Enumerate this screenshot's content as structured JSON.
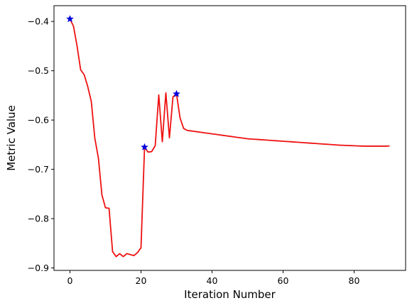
{
  "chart_data": {
    "type": "line",
    "xlabel": "Iteration Number",
    "ylabel": "Metric Value",
    "xlim": [
      -4.5,
      94.5
    ],
    "ylim": [
      -0.905,
      -0.368
    ],
    "x_ticks": [
      0,
      20,
      40,
      60,
      80
    ],
    "x_tick_labels": [
      "0",
      "20",
      "40",
      "60",
      "80"
    ],
    "y_ticks": [
      -0.9,
      -0.8,
      -0.7,
      -0.6,
      -0.5,
      -0.4
    ],
    "y_tick_labels": [
      "−0.9",
      "−0.8",
      "−0.7",
      "−0.6",
      "−0.5",
      "−0.4"
    ],
    "grid": false,
    "line_color": "#ee1111",
    "marker_color": "#0000dd",
    "series": [
      {
        "x": [
          0,
          1,
          2,
          3,
          4,
          5,
          6,
          7,
          8,
          9,
          10,
          11,
          12,
          13,
          14,
          15,
          16,
          17,
          18,
          19,
          20,
          21,
          22,
          23,
          24,
          25,
          26,
          27,
          28,
          29,
          30,
          31,
          32,
          33,
          34,
          35,
          36,
          37,
          38,
          39,
          40,
          41,
          42,
          43,
          44,
          45,
          46,
          47,
          48,
          49,
          50,
          51,
          52,
          53,
          54,
          55,
          56,
          57,
          58,
          59,
          60,
          61,
          62,
          63,
          64,
          65,
          66,
          67,
          68,
          69,
          70,
          71,
          72,
          73,
          74,
          75,
          76,
          77,
          78,
          79,
          80,
          81,
          82,
          83,
          84,
          85,
          86,
          87,
          88,
          89,
          90
        ],
        "values": [
          -0.395,
          -0.41,
          -0.45,
          -0.498,
          -0.508,
          -0.532,
          -0.562,
          -0.637,
          -0.677,
          -0.752,
          -0.778,
          -0.779,
          -0.867,
          -0.877,
          -0.871,
          -0.877,
          -0.871,
          -0.873,
          -0.875,
          -0.869,
          -0.859,
          -0.655,
          -0.665,
          -0.664,
          -0.652,
          -0.549,
          -0.644,
          -0.545,
          -0.636,
          -0.553,
          -0.547,
          -0.596,
          -0.617,
          -0.621,
          -0.622,
          -0.623,
          -0.624,
          -0.625,
          -0.626,
          -0.627,
          -0.628,
          -0.629,
          -0.63,
          -0.631,
          -0.632,
          -0.633,
          -0.634,
          -0.635,
          -0.636,
          -0.637,
          -0.638,
          -0.6385,
          -0.639,
          -0.6395,
          -0.64,
          -0.6405,
          -0.641,
          -0.6415,
          -0.642,
          -0.6425,
          -0.643,
          -0.6435,
          -0.644,
          -0.6445,
          -0.645,
          -0.6455,
          -0.646,
          -0.6465,
          -0.647,
          -0.6475,
          -0.648,
          -0.6485,
          -0.649,
          -0.6495,
          -0.65,
          -0.6505,
          -0.651,
          -0.6513,
          -0.6516,
          -0.6519,
          -0.6522,
          -0.6525,
          -0.6528,
          -0.653,
          -0.653,
          -0.653,
          -0.653,
          -0.653,
          -0.653,
          -0.653,
          -0.6525
        ]
      }
    ],
    "markers": [
      {
        "x": 0,
        "y": -0.395
      },
      {
        "x": 21,
        "y": -0.655
      },
      {
        "x": 30,
        "y": -0.547
      }
    ]
  }
}
